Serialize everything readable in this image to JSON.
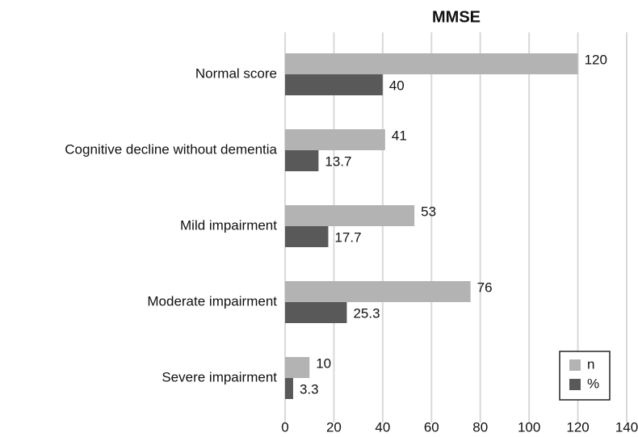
{
  "chart_data": {
    "type": "bar",
    "orientation": "horizontal",
    "title": "MMSE",
    "categories": [
      "Normal score",
      "Cognitive decline without dementia",
      "Mild impairment",
      "Moderate impairment",
      "Severe impairment"
    ],
    "series": [
      {
        "name": "n",
        "color": "#b3b3b3",
        "values": [
          120,
          41,
          53,
          76,
          10
        ]
      },
      {
        "name": "%",
        "color": "#595959",
        "values": [
          40,
          13.7,
          17.7,
          25.3,
          3.3
        ]
      }
    ],
    "xlim": [
      0,
      140
    ],
    "xticks": [
      0,
      20,
      40,
      60,
      80,
      100,
      120,
      140
    ],
    "grid": true,
    "legend": "lower right"
  }
}
